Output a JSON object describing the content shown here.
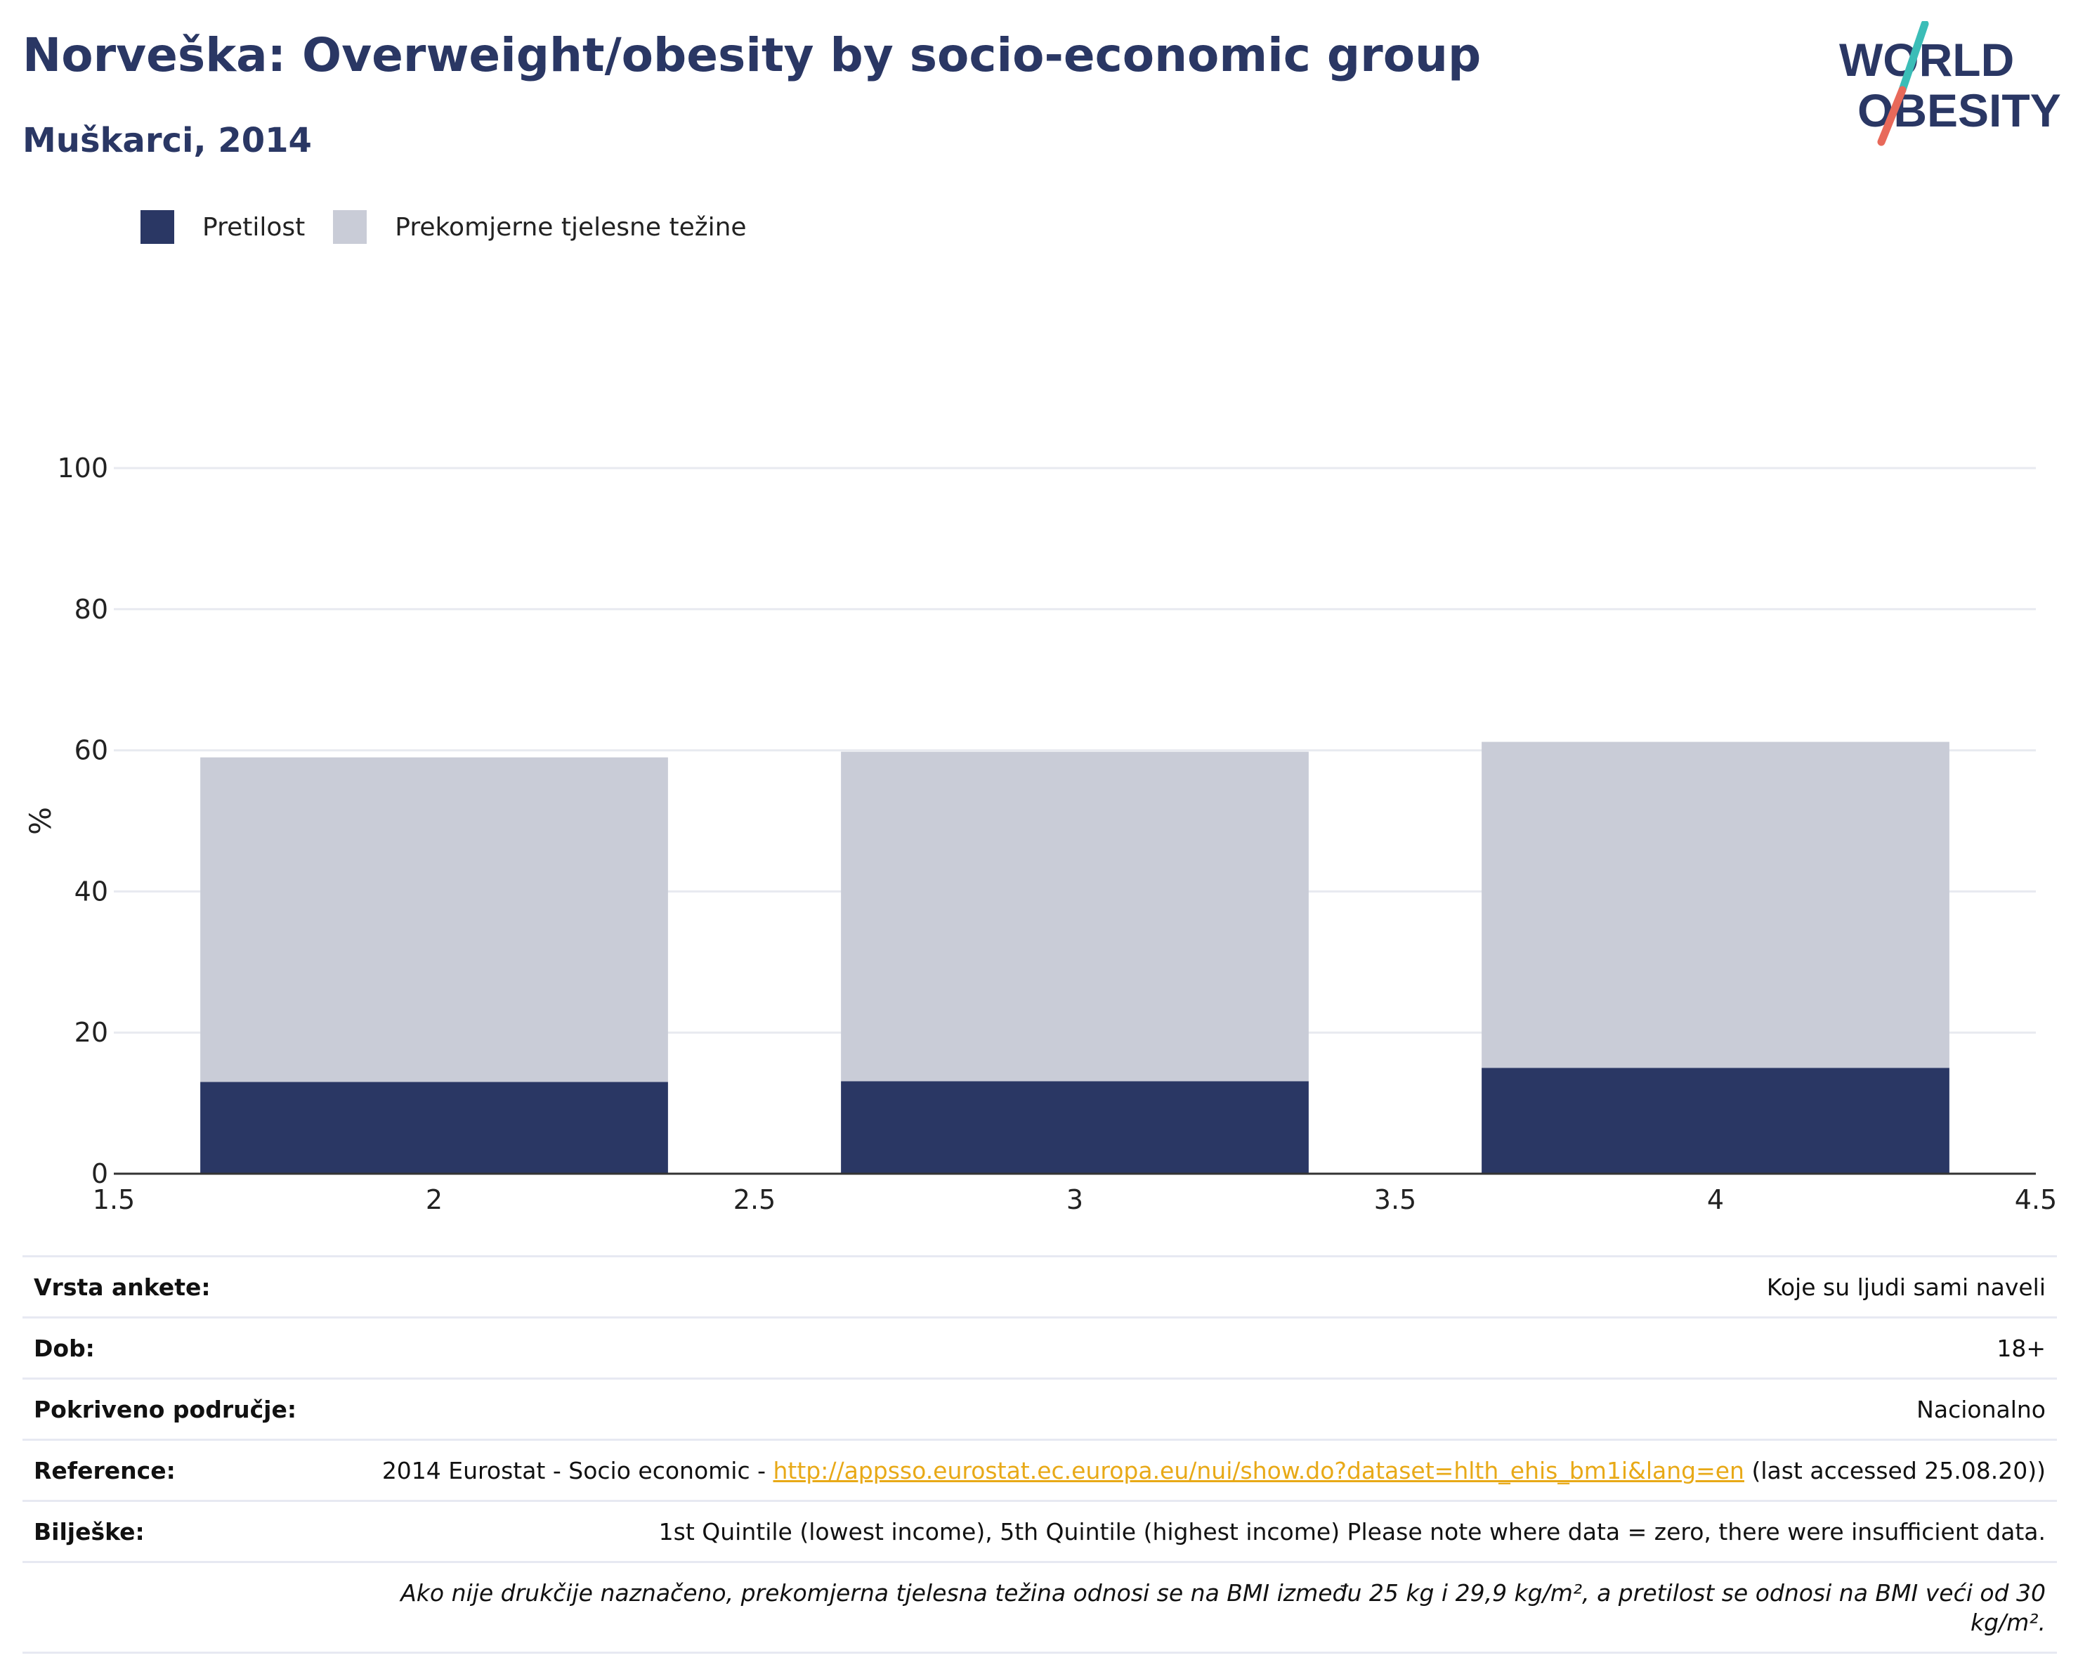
{
  "header": {
    "title": "Norveška: Overweight/obesity by socio-economic group",
    "subtitle": "Muškarci, 2014"
  },
  "logo": {
    "line1": "WORLD",
    "line2": "OBESITY"
  },
  "colors": {
    "obesity": "#2a3764",
    "overweight": "#c9ccd7",
    "accent_link": "#e8a917",
    "logo_teal": "#3bbdb7",
    "logo_coral": "#e8695a"
  },
  "legend": {
    "items": [
      {
        "label": "Pretilost",
        "color": "#2a3764"
      },
      {
        "label": "Prekomjerne tjelesne težine",
        "color": "#c9ccd7"
      }
    ]
  },
  "chart_data": {
    "type": "bar",
    "stacked": true,
    "x": [
      2,
      3,
      4
    ],
    "series": [
      {
        "name": "Pretilost",
        "values": [
          13,
          13.1,
          15
        ]
      },
      {
        "name": "Prekomjerne tjelesne težine",
        "values": [
          46,
          46.7,
          46.2
        ]
      }
    ],
    "ylabel": "%",
    "ylim": [
      0,
      100
    ],
    "yticks": [
      "0",
      "20",
      "40",
      "60",
      "80",
      "100"
    ],
    "xlim": [
      1.5,
      4.5
    ],
    "xticks": [
      "1.5",
      "2",
      "2.5",
      "3",
      "3.5",
      "4",
      "4.5"
    ],
    "grid": true
  },
  "info": {
    "survey_label": "Vrsta ankete:",
    "survey_value": "Koje su ljudi sami naveli",
    "age_label": "Dob:",
    "age_value": "18+",
    "coverage_label": "Pokriveno područje:",
    "coverage_value": "Nacionalno",
    "reference_label": "Reference:",
    "reference_prefix": "2014 Eurostat - Socio economic - ",
    "reference_link": "http://appsso.eurostat.ec.europa.eu/nui/show.do?dataset=hlth_ehis_bm1i&lang=en",
    "reference_suffix": " (last accessed 25.08.20))",
    "notes_label": "Bilješke:",
    "notes_value": "1st Quintile (lowest income), 5th Quintile (highest income) Please note where data = zero, there were insufficient data.",
    "definition": "Ako nije drukčije naznačeno, prekomjerna tjelesna težina odnosi se na BMI između 25 kg i 29,9 kg/m², a pretilost se odnosi na BMI veći od 30 kg/m²."
  }
}
